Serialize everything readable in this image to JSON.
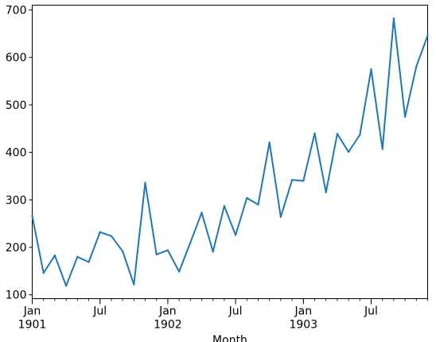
{
  "chart_data": {
    "type": "line",
    "title": "",
    "xlabel": "Month",
    "ylabel": "",
    "x": [
      "1901-01",
      "1901-02",
      "1901-03",
      "1901-04",
      "1901-05",
      "1901-06",
      "1901-07",
      "1901-08",
      "1901-09",
      "1901-10",
      "1901-11",
      "1901-12",
      "1902-01",
      "1902-02",
      "1902-03",
      "1902-04",
      "1902-05",
      "1902-06",
      "1902-07",
      "1902-08",
      "1902-09",
      "1902-10",
      "1902-11",
      "1902-12",
      "1903-01",
      "1903-02",
      "1903-03",
      "1903-04",
      "1903-05",
      "1903-06",
      "1903-07",
      "1903-08",
      "1903-09",
      "1903-10",
      "1903-11",
      "1903-12"
    ],
    "series": [
      {
        "color": "#1f77b4",
        "values": [
          266,
          146,
          183,
          119,
          180,
          169,
          232,
          224,
          192,
          122,
          336,
          185,
          194,
          149,
          210,
          273,
          191,
          287,
          226,
          304,
          290,
          421,
          264,
          342,
          340,
          440,
          316,
          439,
          401,
          437,
          575,
          407,
          682,
          475,
          581,
          646
        ]
      }
    ],
    "ylim": [
      92,
      710
    ],
    "y_ticks": [
      100,
      200,
      300,
      400,
      500,
      600,
      700
    ],
    "y_tick_labels": [
      "100",
      "200",
      "300",
      "400",
      "500",
      "600",
      "700"
    ],
    "x_ticks": [
      {
        "month": "1901-01",
        "label": "Jan",
        "sublabel": "1901"
      },
      {
        "month": "1901-07",
        "label": "Jul",
        "sublabel": ""
      },
      {
        "month": "1902-01",
        "label": "Jan",
        "sublabel": "1902"
      },
      {
        "month": "1902-07",
        "label": "Jul",
        "sublabel": ""
      },
      {
        "month": "1903-01",
        "label": "Jan",
        "sublabel": "1903"
      },
      {
        "month": "1903-07",
        "label": "Jul",
        "sublabel": ""
      }
    ],
    "grid": false,
    "legend": "none"
  }
}
